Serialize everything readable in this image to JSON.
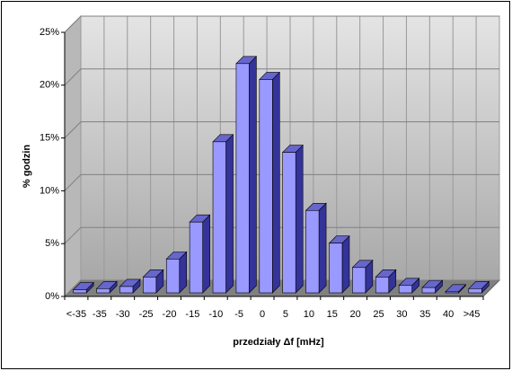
{
  "chart_data": {
    "type": "bar3d",
    "x_label": "przedziały Δf [mHz]",
    "y_label": "% godzin",
    "categories": [
      "<-35",
      "-35",
      "-30",
      "-25",
      "-20",
      "-15",
      "-10",
      "-5",
      "0",
      "5",
      "10",
      "15",
      "20",
      "25",
      "30",
      "35",
      "40",
      ">45"
    ],
    "values": [
      0.3,
      0.4,
      0.6,
      1.5,
      3.2,
      6.7,
      14.3,
      21.7,
      20.2,
      13.3,
      7.8,
      4.7,
      2.4,
      1.5,
      0.7,
      0.5,
      0.1,
      0.4
    ],
    "color": "#9999ff",
    "ylim": [
      0,
      25
    ],
    "yticks": [
      {
        "value": 0,
        "label": "0%"
      },
      {
        "value": 5,
        "label": "5%"
      },
      {
        "value": 10,
        "label": "10%"
      },
      {
        "value": 15,
        "label": "15%"
      },
      {
        "value": 20,
        "label": "20%"
      },
      {
        "value": 25,
        "label": "25%"
      }
    ],
    "grid": true
  }
}
